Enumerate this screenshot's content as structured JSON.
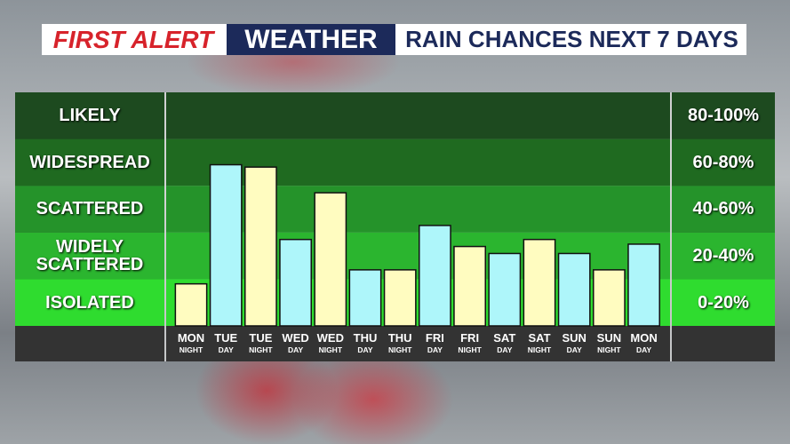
{
  "chart_data": {
    "type": "bar",
    "header": {
      "brand": "FIRST ALERT",
      "section": "WEATHER",
      "title": "RAIN CHANCES NEXT 7 DAYS"
    },
    "bands": [
      {
        "label": "LIKELY",
        "range": "80-100%",
        "color": "#1d4a1f"
      },
      {
        "label": "WIDESPREAD",
        "range": "60-80%",
        "color": "#1f6a20"
      },
      {
        "label": "SCATTERED",
        "range": "40-60%",
        "color": "#25932a"
      },
      {
        "label": "WIDELY SCATTERED",
        "range": "20-40%",
        "color": "#2bb52f"
      },
      {
        "label": "ISOLATED",
        "range": "0-20%",
        "color": "#2fdc2f"
      }
    ],
    "categories": [
      "MON",
      "TUE",
      "TUE",
      "WED",
      "WED",
      "THU",
      "THU",
      "FRI",
      "FRI",
      "SAT",
      "SAT",
      "SUN",
      "SUN",
      "MON"
    ],
    "periods": [
      "NIGHT",
      "DAY",
      "NIGHT",
      "DAY",
      "NIGHT",
      "DAY",
      "NIGHT",
      "DAY",
      "NIGHT",
      "DAY",
      "NIGHT",
      "DAY",
      "NIGHT",
      "DAY"
    ],
    "values": [
      18,
      69,
      68,
      37,
      57,
      24,
      24,
      43,
      34,
      31,
      37,
      31,
      24,
      35
    ],
    "bar_colors": [
      "#fffcc0",
      "#aef6fa",
      "#fffcc0",
      "#aef6fa",
      "#fffcc0",
      "#aef6fa",
      "#fffcc0",
      "#aef6fa",
      "#fffcc0",
      "#aef6fa",
      "#fffcc0",
      "#aef6fa",
      "#fffcc0",
      "#aef6fa"
    ],
    "ylim": [
      0,
      100
    ]
  }
}
